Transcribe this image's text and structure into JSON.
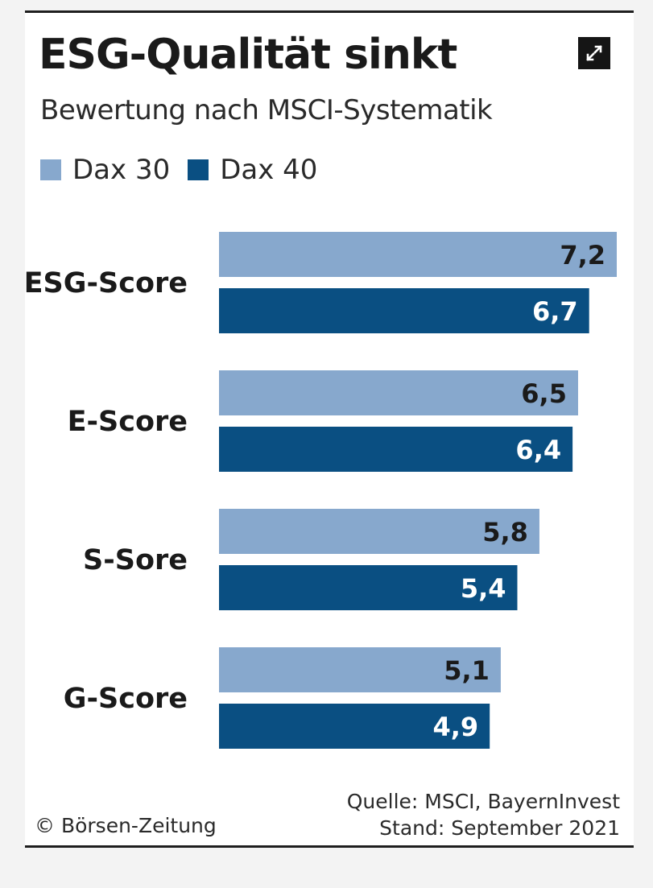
{
  "chart_data": {
    "type": "bar",
    "orientation": "horizontal",
    "title": "ESG-Qualität sinkt",
    "subtitle": "Bewertung nach MSCI-Systematik",
    "categories": [
      "ESG-Score",
      "E-Score",
      "S-Sore",
      "G-Score"
    ],
    "series": [
      {
        "name": "Dax 30",
        "values": [
          7.2,
          6.5,
          5.8,
          5.1
        ],
        "value_labels": [
          "7,2",
          "6,5",
          "5,8",
          "5,1"
        ],
        "color": "#87a8cd",
        "label_color": "#1a1a1a"
      },
      {
        "name": "Dax 40",
        "values": [
          6.7,
          6.4,
          5.4,
          4.9
        ],
        "value_labels": [
          "6,7",
          "6,4",
          "5,4",
          "4,9"
        ],
        "color": "#0a4f82",
        "label_color": "#ffffff"
      }
    ],
    "xlim": [
      0,
      7.2
    ],
    "grid": false,
    "legend_position": "top-left"
  },
  "footer": {
    "copyright": "© Börsen-Zeitung",
    "source": "Quelle: MSCI, BayernInvest",
    "date": "Stand: September 2021"
  },
  "icons": {
    "expand": "expand-arrows-icon"
  }
}
